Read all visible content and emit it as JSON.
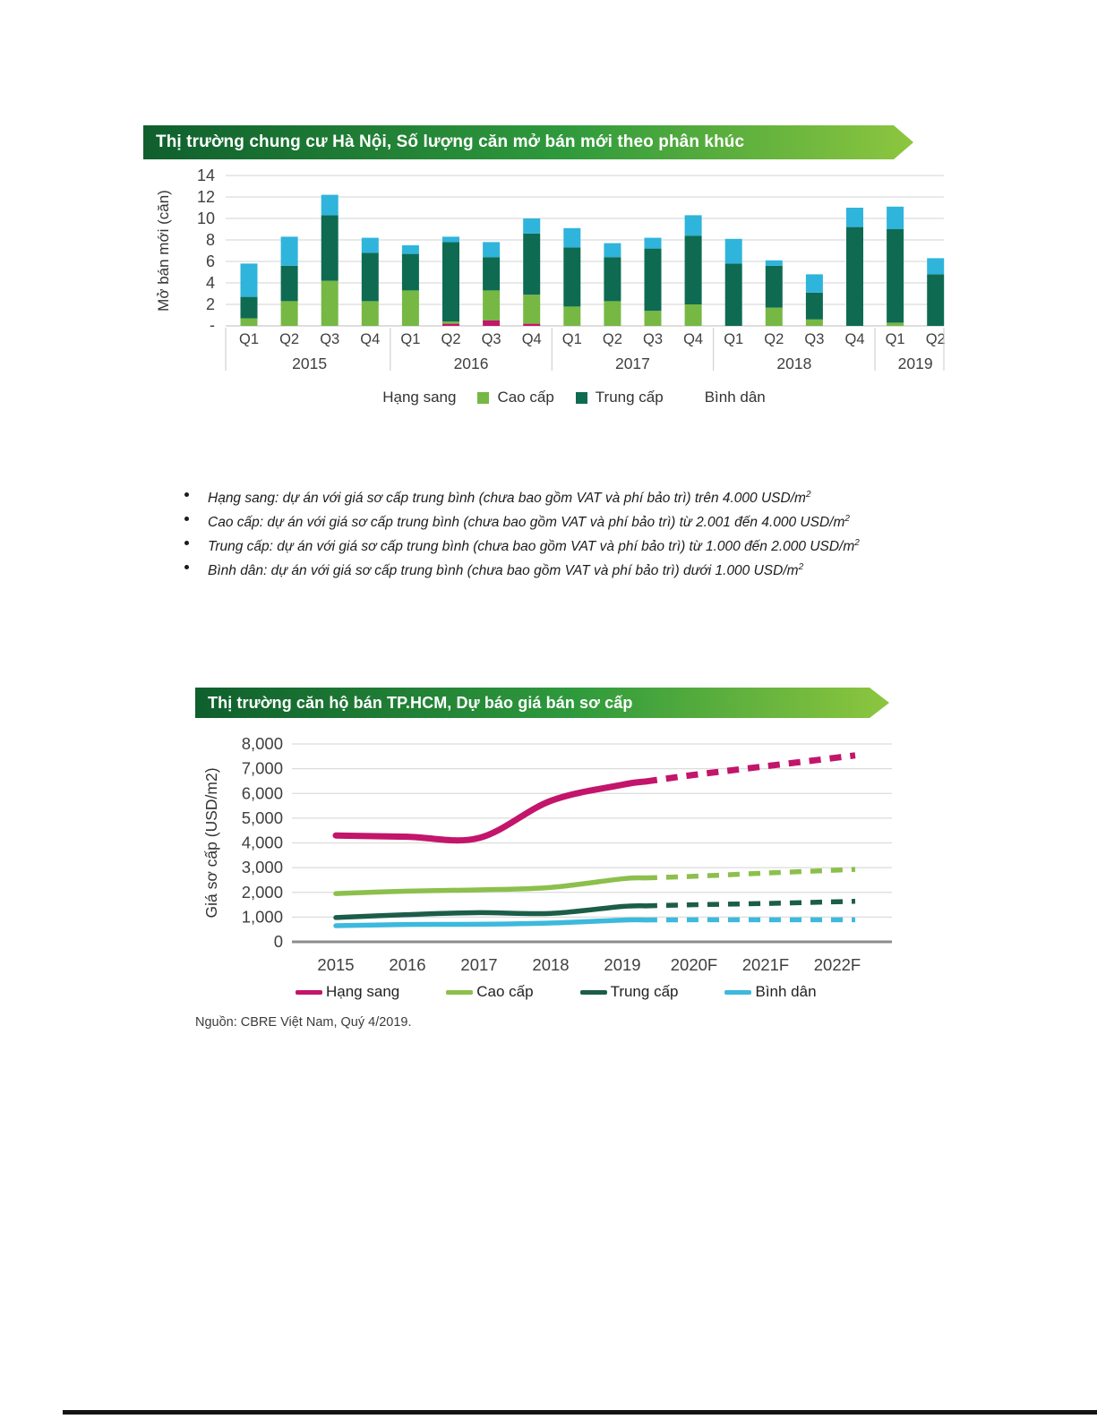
{
  "source_note": "Nguồn: CBRE Việt Nam, Quý 4/2019.",
  "bullets": [
    {
      "text": "Hạng sang: dự án với giá sơ cấp trung bình (chưa bao gồm VAT và phí bảo trì) trên 4.000 USD/m",
      "sup": "2"
    },
    {
      "text": "Cao cấp: dự án với giá sơ cấp trung bình (chưa bao gồm VAT và phí bảo trì) từ 2.001 đến 4.000 USD/m",
      "sup": "2"
    },
    {
      "text": "Trung cấp: dự án với giá sơ cấp trung bình (chưa bao gồm VAT và phí bảo trì) từ 1.000 đến 2.000 USD/m",
      "sup": "2"
    },
    {
      "text": "Bình dân: dự án với giá sơ cấp trung bình (chưa bao gồm VAT và phí bảo trì) dưới 1.000 USD/m",
      "sup": "2"
    }
  ],
  "chart_data": [
    {
      "type": "bar",
      "title": "Thị trường chung cư Hà Nội, Số lượng căn mở bán mới theo phân khúc",
      "ylabel": "Mở bán mới (căn)",
      "ylim": [
        0,
        14
      ],
      "yticks": [
        14,
        12,
        10,
        8,
        6,
        4,
        2
      ],
      "zero_tick_label": "-",
      "grid": true,
      "groups": [
        {
          "year": "2015",
          "quarters": [
            "Q1",
            "Q2",
            "Q3",
            "Q4"
          ]
        },
        {
          "year": "2016",
          "quarters": [
            "Q1",
            "Q2",
            "Q3",
            "Q4"
          ]
        },
        {
          "year": "2017",
          "quarters": [
            "Q1",
            "Q2",
            "Q3",
            "Q4"
          ]
        },
        {
          "year": "2018",
          "quarters": [
            "Q1",
            "Q2",
            "Q3",
            "Q4"
          ]
        },
        {
          "year": "2019",
          "quarters": [
            "Q1",
            "Q2"
          ]
        }
      ],
      "series": [
        {
          "name": "Hạng sang",
          "color": "#C2156B",
          "values": [
            0,
            0,
            0,
            0,
            0,
            0.2,
            0.5,
            0.2,
            0,
            0,
            0,
            0,
            0,
            0,
            0,
            0,
            0,
            0
          ]
        },
        {
          "name": "Cao cấp",
          "color": "#76B843",
          "values": [
            0.7,
            2.3,
            4.2,
            2.3,
            3.3,
            0.2,
            2.8,
            2.7,
            1.8,
            2.3,
            1.4,
            2.0,
            0,
            1.7,
            0.6,
            0,
            0.3,
            0
          ]
        },
        {
          "name": "Trung cấp",
          "color": "#0E6B52",
          "values": [
            2.0,
            3.3,
            6.1,
            4.5,
            3.4,
            7.4,
            3.1,
            5.7,
            5.5,
            4.1,
            5.8,
            6.4,
            5.8,
            3.9,
            2.5,
            9.2,
            8.7,
            4.8
          ]
        },
        {
          "name": "Bình dân",
          "color": "#2FB4DC",
          "values": [
            3.1,
            2.7,
            1.9,
            1.4,
            0.8,
            0.5,
            1.4,
            1.4,
            1.8,
            1.3,
            1.0,
            1.9,
            2.3,
            0.5,
            1.7,
            1.8,
            2.1,
            1.5
          ]
        }
      ],
      "legend": [
        {
          "label": "Hạng sang",
          "marker": "none"
        },
        {
          "label": "Cao cấp",
          "marker": "#76B843"
        },
        {
          "label": "Trung cấp",
          "marker": "#0E6B52"
        },
        {
          "label": "Bình dân",
          "marker": "none"
        }
      ],
      "legend_position": "bottom"
    },
    {
      "type": "line",
      "title": "Thị trường căn hộ bán TP.HCM, Dự báo giá bán sơ cấp",
      "ylabel": "Giá sơ cấp (USD/m2)",
      "ylim": [
        0,
        8000
      ],
      "ytick_step": 1000,
      "ytick_labels": [
        "8,000",
        "7,000",
        "6,000",
        "5,000",
        "4,000",
        "3,000",
        "2,000",
        "1,000",
        "0"
      ],
      "x": [
        "2015",
        "2016",
        "2017",
        "2018",
        "2019",
        "2020F",
        "2021F",
        "2022F"
      ],
      "solid_through": "2019",
      "forecast_style": "dashed",
      "grid": true,
      "series": [
        {
          "name": "Hạng sang",
          "color": "#C2156B",
          "width": 7,
          "values": [
            4300,
            4250,
            4200,
            5700,
            6350,
            6750,
            7100,
            7450
          ]
        },
        {
          "name": "Cao cấp",
          "color": "#8CBF4C",
          "width": 5.5,
          "values": [
            1950,
            2050,
            2100,
            2200,
            2550,
            2650,
            2780,
            2900
          ]
        },
        {
          "name": "Trung cấp",
          "color": "#1C5D49",
          "width": 5.5,
          "values": [
            980,
            1100,
            1180,
            1150,
            1430,
            1500,
            1550,
            1620
          ]
        },
        {
          "name": "Bình dân",
          "color": "#3CB9DC",
          "width": 5.5,
          "values": [
            650,
            700,
            710,
            760,
            880,
            890,
            890,
            890
          ]
        }
      ],
      "legend": [
        {
          "label": "Hạng sang",
          "color": "#C2156B"
        },
        {
          "label": "Cao cấp",
          "color": "#8CBF4C"
        },
        {
          "label": "Trung cấp",
          "color": "#1C5D49"
        },
        {
          "label": "Bình dân",
          "color": "#3CB9DC"
        }
      ],
      "legend_position": "bottom"
    }
  ]
}
